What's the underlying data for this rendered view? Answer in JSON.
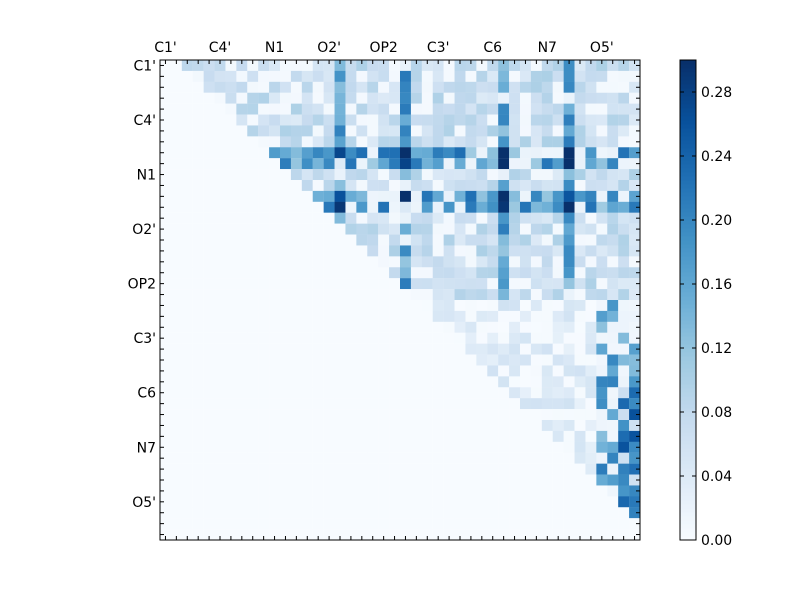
{
  "chart_data": {
    "type": "heatmap",
    "title": "",
    "xlabel": "",
    "ylabel": "",
    "colormap": "Blues",
    "grid_size": 44,
    "x_tick_labels": [
      "C1'",
      "C4'",
      "N1",
      "O2'",
      "OP2",
      "C3'",
      "C6",
      "N7",
      "O5'"
    ],
    "y_tick_labels": [
      "C1'",
      "C4'",
      "N1",
      "O2'",
      "OP2",
      "C3'",
      "C6",
      "N7",
      "O5'"
    ],
    "tick_index_positions": [
      0,
      5,
      10,
      15,
      20,
      25,
      30,
      35,
      40
    ],
    "colorbar": {
      "min": 0.0,
      "max": 0.3,
      "tick_values": [
        0.0,
        0.04,
        0.08,
        0.12,
        0.16,
        0.2,
        0.24,
        0.28
      ],
      "tick_labels": [
        "0.00",
        "0.04",
        "0.08",
        "0.12",
        "0.16",
        "0.20",
        "0.24",
        "0.28"
      ]
    },
    "notes_upper_triangle_only": true,
    "highlight_columns": [
      16,
      22,
      31,
      37
    ],
    "highlight_rows": [
      8,
      9,
      12,
      13
    ],
    "peak_value": 0.3
  }
}
